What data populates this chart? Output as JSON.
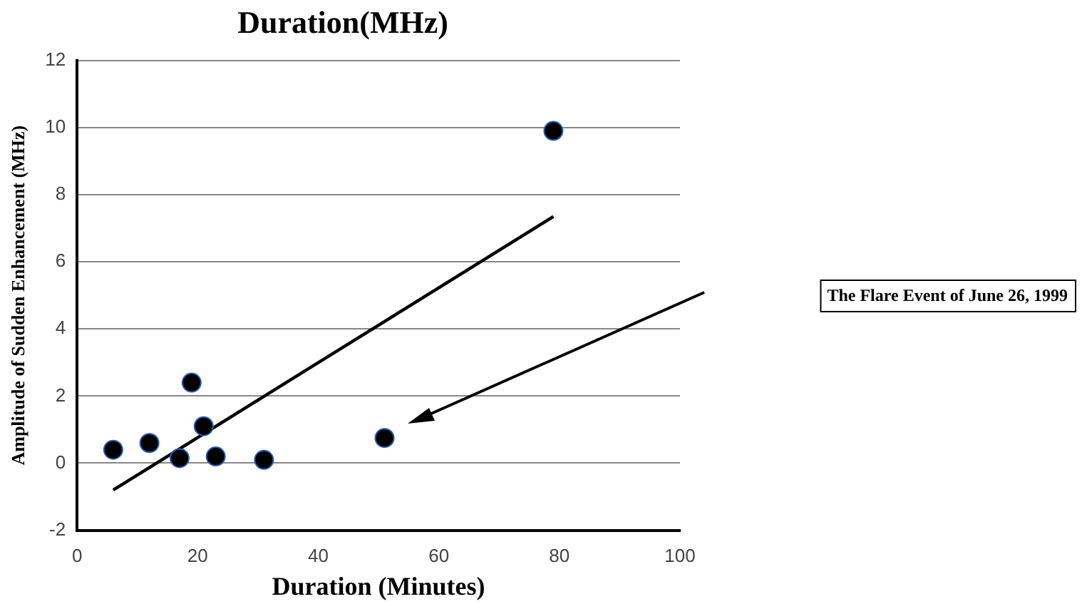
{
  "chart_data": {
    "type": "scatter",
    "title": "Duration(MHz)",
    "xlabel": "Duration (Minutes)",
    "ylabel": "Amplitude of Sudden Enhancement (MHz)",
    "series": [
      {
        "color": "#000000",
        "marker": "circle",
        "x": [
          6,
          12,
          17,
          19,
          21,
          23,
          31,
          51,
          79
        ],
        "values": [
          0.4,
          0.6,
          0.15,
          2.4,
          1.1,
          0.2,
          0.1,
          0.75,
          9.9
        ]
      },
      {
        "type": "line",
        "color": "#000000",
        "marker": "none",
        "x": [
          6,
          79
        ],
        "values": [
          -0.8,
          7.35
        ]
      }
    ],
    "xlim": [
      0,
      100
    ],
    "xticks": [
      0,
      20,
      40,
      60,
      80,
      100
    ],
    "ylim": [
      -2,
      12
    ],
    "yticks": [
      -2,
      0,
      2,
      4,
      6,
      8,
      10,
      12
    ],
    "grid": "y",
    "legend": false,
    "annotations": [
      "The Flare Event of June 26, 1999"
    ]
  }
}
